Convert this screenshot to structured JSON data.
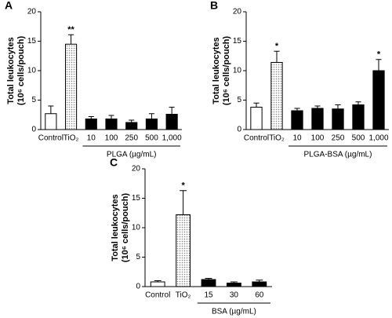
{
  "chart_data": [
    {
      "type": "bar",
      "panel": "A",
      "ylabel": [
        "Total leukocytes",
        "(10⁶ cells/pouch)"
      ],
      "categories": [
        "Control",
        "TiO₂",
        "10",
        "100",
        "250",
        "500",
        "1,000"
      ],
      "values": [
        2.7,
        14.5,
        1.8,
        1.8,
        1.2,
        1.8,
        2.6
      ],
      "errors": [
        1.3,
        1.6,
        0.4,
        0.6,
        0.4,
        0.9,
        1.2
      ],
      "colors": [
        "#ffffff",
        "#dcdcdc",
        "#000000",
        "#000000",
        "#000000",
        "#000000",
        "#000000"
      ],
      "value_annotations": [
        null,
        "**",
        null,
        null,
        null,
        null,
        null
      ],
      "group_label": "PLGA (µg/mL)",
      "ylim": [
        0,
        20
      ],
      "yticks": [
        0,
        5,
        10,
        15,
        20
      ]
    },
    {
      "type": "bar",
      "panel": "B",
      "ylabel": [
        "Total leukocytes",
        "(10⁶ cells/pouch)"
      ],
      "categories": [
        "Control",
        "TiO₂",
        "10",
        "100",
        "250",
        "500",
        "1,000"
      ],
      "values": [
        3.8,
        11.4,
        3.2,
        3.6,
        3.5,
        4.2,
        10.0
      ],
      "errors": [
        0.7,
        1.9,
        0.4,
        0.4,
        0.7,
        0.5,
        1.9
      ],
      "colors": [
        "#ffffff",
        "#dcdcdc",
        "#000000",
        "#000000",
        "#000000",
        "#000000",
        "#000000"
      ],
      "value_annotations": [
        null,
        "*",
        null,
        null,
        null,
        null,
        "*"
      ],
      "group_label": "PLGA-BSA (µg/mL)",
      "ylim": [
        0,
        20
      ],
      "yticks": [
        0,
        5,
        10,
        15,
        20
      ]
    },
    {
      "type": "bar",
      "panel": "C",
      "ylabel": [
        "Total leukocytes",
        "(10⁶ cells/pouch)"
      ],
      "categories": [
        "Control",
        "TiO₂",
        "15",
        "30",
        "60"
      ],
      "values": [
        0.8,
        12.2,
        1.2,
        0.6,
        0.8
      ],
      "errors": [
        0.2,
        4.1,
        0.2,
        0.2,
        0.3
      ],
      "colors": [
        "#ffffff",
        "#dcdcdc",
        "#000000",
        "#000000",
        "#000000"
      ],
      "value_annotations": [
        null,
        "*",
        null,
        null,
        null
      ],
      "group_label": "BSA (µg/mL)",
      "ylim": [
        0,
        20
      ],
      "yticks": [
        0,
        5,
        10,
        15,
        20
      ]
    }
  ]
}
